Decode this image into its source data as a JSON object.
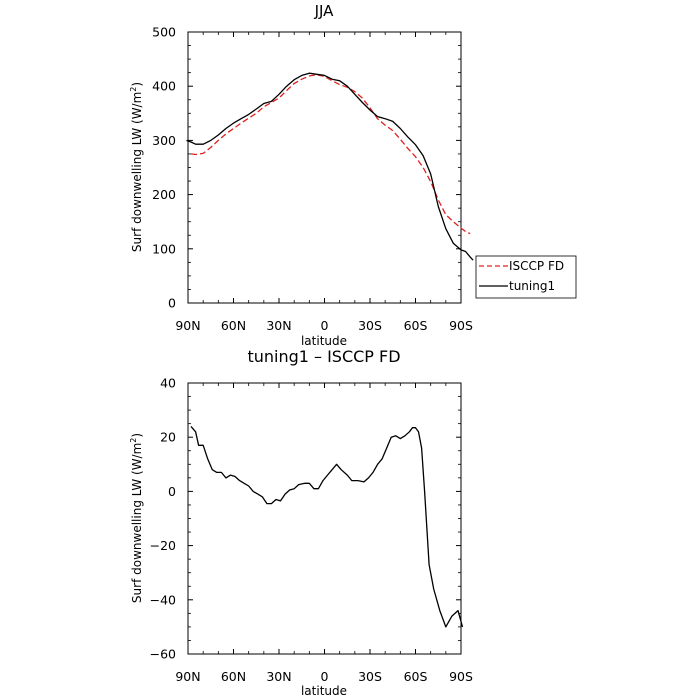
{
  "chart_data": [
    {
      "type": "line",
      "title": "JJA",
      "xlabel": "latitude",
      "ylabel": "Surf downwelling LW (W/m²)",
      "ylabel_main": "Surf downwelling LW (W/m",
      "ylabel_sup": "2",
      "ylabel_tail": ")",
      "x_ticks": [
        "90N",
        "60N",
        "30N",
        "0",
        "30S",
        "60S",
        "90S"
      ],
      "x_tick_values": [
        90,
        60,
        30,
        0,
        -30,
        -60,
        -90
      ],
      "xlim": [
        90,
        -90
      ],
      "ylim": [
        0,
        500
      ],
      "y_ticks": [
        0,
        100,
        200,
        300,
        400,
        500
      ],
      "y_tick_labels": [
        "0",
        "100",
        "200",
        "300",
        "400",
        "500"
      ],
      "legend": {
        "placement": "outside-right",
        "entries": [
          "ISCCP FD",
          "tuning1"
        ]
      },
      "series": [
        {
          "name": "ISCCP FD",
          "color": "#e02020",
          "dashed": true,
          "points": [
            [
              88,
              275
            ],
            [
              85,
              274
            ],
            [
              80,
              276
            ],
            [
              75,
              287
            ],
            [
              70,
              300
            ],
            [
              65,
              312
            ],
            [
              60,
              322
            ],
            [
              55,
              332
            ],
            [
              50,
              341
            ],
            [
              45,
              350
            ],
            [
              40,
              362
            ],
            [
              35,
              370
            ],
            [
              30,
              378
            ],
            [
              25,
              392
            ],
            [
              20,
              405
            ],
            [
              15,
              413
            ],
            [
              10,
              419
            ],
            [
              5,
              421
            ],
            [
              0,
              418
            ],
            [
              -5,
              410
            ],
            [
              -10,
              403
            ],
            [
              -15,
              398
            ],
            [
              -20,
              390
            ],
            [
              -25,
              378
            ],
            [
              -30,
              360
            ],
            [
              -35,
              340
            ],
            [
              -40,
              328
            ],
            [
              -45,
              318
            ],
            [
              -50,
              302
            ],
            [
              -55,
              285
            ],
            [
              -60,
              270
            ],
            [
              -65,
              250
            ],
            [
              -70,
              224
            ],
            [
              -75,
              190
            ],
            [
              -80,
              163
            ],
            [
              -85,
              150
            ],
            [
              -90,
              138
            ],
            [
              -93,
              132
            ],
            [
              -96,
              128
            ]
          ]
        },
        {
          "name": "tuning1",
          "color": "#000000",
          "dashed": false,
          "points": [
            [
              91,
              300
            ],
            [
              88,
              297
            ],
            [
              85,
              293
            ],
            [
              80,
              293
            ],
            [
              75,
              300
            ],
            [
              70,
              310
            ],
            [
              65,
              322
            ],
            [
              60,
              332
            ],
            [
              55,
              340
            ],
            [
              50,
              348
            ],
            [
              45,
              358
            ],
            [
              40,
              368
            ],
            [
              35,
              372
            ],
            [
              30,
              385
            ],
            [
              25,
              400
            ],
            [
              20,
              412
            ],
            [
              15,
              420
            ],
            [
              10,
              424
            ],
            [
              5,
              422
            ],
            [
              0,
              420
            ],
            [
              -5,
              413
            ],
            [
              -10,
              410
            ],
            [
              -15,
              400
            ],
            [
              -20,
              385
            ],
            [
              -25,
              370
            ],
            [
              -30,
              356
            ],
            [
              -35,
              344
            ],
            [
              -40,
              340
            ],
            [
              -45,
              335
            ],
            [
              -50,
              322
            ],
            [
              -55,
              306
            ],
            [
              -60,
              292
            ],
            [
              -65,
              272
            ],
            [
              -70,
              238
            ],
            [
              -75,
              178
            ],
            [
              -80,
              137
            ],
            [
              -85,
              110
            ],
            [
              -90,
              98
            ],
            [
              -93,
              95
            ],
            [
              -96,
              85
            ],
            [
              -98,
              79
            ]
          ]
        }
      ]
    },
    {
      "type": "line",
      "title": "tuning1 – ISCCP FD",
      "xlabel": "latitude",
      "ylabel": "Surf downwelling LW (W/m²)",
      "ylabel_main": "Surf downwelling LW (W/m",
      "ylabel_sup": "2",
      "ylabel_tail": ")",
      "x_ticks": [
        "90N",
        "60N",
        "30N",
        "0",
        "30S",
        "60S",
        "90S"
      ],
      "x_tick_values": [
        90,
        60,
        30,
        0,
        -30,
        -60,
        -90
      ],
      "xlim": [
        90,
        -90
      ],
      "ylim": [
        -60,
        40
      ],
      "y_ticks": [
        -60,
        -40,
        -20,
        0,
        20,
        40
      ],
      "y_tick_labels": [
        "−60",
        "−40",
        "−20",
        "0",
        "20",
        "40"
      ],
      "series": [
        {
          "name": "tuning1 – ISCCP FD",
          "color": "#000000",
          "dashed": false,
          "points": [
            [
              88,
              24
            ],
            [
              85,
              22
            ],
            [
              83,
              17
            ],
            [
              80,
              17
            ],
            [
              77,
              12
            ],
            [
              74,
              8
            ],
            [
              71,
              7
            ],
            [
              68,
              7
            ],
            [
              65,
              5
            ],
            [
              62,
              6
            ],
            [
              59,
              5.5
            ],
            [
              56,
              4
            ],
            [
              53,
              3
            ],
            [
              50,
              2
            ],
            [
              47,
              0
            ],
            [
              44,
              -1
            ],
            [
              41,
              -2
            ],
            [
              38,
              -4.5
            ],
            [
              35,
              -4.5
            ],
            [
              32,
              -3
            ],
            [
              29,
              -3.5
            ],
            [
              26,
              -1
            ],
            [
              23,
              0.5
            ],
            [
              20,
              1
            ],
            [
              17,
              2.5
            ],
            [
              13,
              3
            ],
            [
              10,
              3
            ],
            [
              7,
              1
            ],
            [
              4,
              1
            ],
            [
              1,
              4
            ],
            [
              -2,
              6
            ],
            [
              -5,
              8
            ],
            [
              -8,
              10
            ],
            [
              -11,
              8
            ],
            [
              -15,
              6
            ],
            [
              -18,
              4
            ],
            [
              -22,
              4
            ],
            [
              -26,
              3.5
            ],
            [
              -29,
              5
            ],
            [
              -32,
              7
            ],
            [
              -35,
              10
            ],
            [
              -38,
              12
            ],
            [
              -41,
              16
            ],
            [
              -44,
              20
            ],
            [
              -47,
              20.5
            ],
            [
              -50,
              19.5
            ],
            [
              -53,
              20.5
            ],
            [
              -56,
              22
            ],
            [
              -58,
              23.5
            ],
            [
              -60,
              23.5
            ],
            [
              -62,
              22
            ],
            [
              -64,
              16
            ],
            [
              -66,
              0
            ],
            [
              -69,
              -27
            ],
            [
              -72,
              -36
            ],
            [
              -76,
              -44
            ],
            [
              -80,
              -50
            ],
            [
              -84,
              -46
            ],
            [
              -88,
              -44
            ],
            [
              -91,
              -50
            ]
          ]
        }
      ]
    }
  ]
}
